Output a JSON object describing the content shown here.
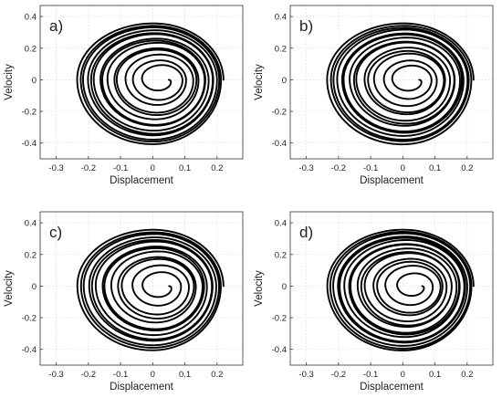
{
  "chart_data": [
    {
      "type": "line",
      "panel_label": "a)",
      "xlabel": "Displacement",
      "ylabel": "Velocity",
      "xlim": [
        -0.35,
        0.28
      ],
      "ylim": [
        -0.5,
        0.47
      ],
      "xticks": [
        -0.3,
        -0.2,
        -0.1,
        0,
        0.1,
        0.2
      ],
      "xtick_labels": [
        "-0.3",
        "-0.2",
        "-0.1",
        "0",
        "0.1",
        "0.2"
      ],
      "yticks": [
        -0.4,
        -0.2,
        0,
        0.2,
        0.4
      ],
      "ytick_labels": [
        "-0.4",
        "-0.2",
        "0",
        "0.2",
        "0.4"
      ],
      "grid": true,
      "series": [
        {
          "color": "#000000",
          "trajectory": {
            "start_x": 0.03,
            "start_y": 0.0,
            "final_x_neg": -0.24,
            "final_x_pos": 0.22,
            "final_y_pos": 0.42,
            "final_y_neg": -0.36,
            "loops": 14
          }
        }
      ]
    },
    {
      "type": "line",
      "panel_label": "b)",
      "xlabel": "Displacement",
      "ylabel": "Velocity",
      "xlim": [
        -0.35,
        0.28
      ],
      "ylim": [
        -0.5,
        0.47
      ],
      "xticks": [
        -0.3,
        -0.2,
        -0.1,
        0,
        0.1,
        0.2
      ],
      "xtick_labels": [
        "-0.3",
        "-0.2",
        "-0.1",
        "0",
        "0.1",
        "0.2"
      ],
      "yticks": [
        -0.4,
        -0.2,
        0,
        0.2,
        0.4
      ],
      "ytick_labels": [
        "-0.4",
        "-0.2",
        "0",
        "0.2",
        "0.4"
      ],
      "grid": true,
      "series": [
        {
          "color": "#000000",
          "trajectory": {
            "start_x": 0.03,
            "start_y": 0.0,
            "final_x_neg": -0.24,
            "final_x_pos": 0.22,
            "final_y_pos": 0.42,
            "final_y_neg": -0.36,
            "loops": 14
          }
        }
      ]
    },
    {
      "type": "line",
      "panel_label": "c)",
      "xlabel": "Displacement",
      "ylabel": "Velocity",
      "xlim": [
        -0.35,
        0.28
      ],
      "ylim": [
        -0.5,
        0.47
      ],
      "xticks": [
        -0.3,
        -0.2,
        -0.1,
        0,
        0.1,
        0.2
      ],
      "xtick_labels": [
        "-0.3",
        "-0.2",
        "-0.1",
        "0",
        "0.1",
        "0.2"
      ],
      "yticks": [
        -0.4,
        -0.2,
        0,
        0.2,
        0.4
      ],
      "ytick_labels": [
        "-0.4",
        "-0.2",
        "0",
        "0.2",
        "0.4"
      ],
      "grid": true,
      "series": [
        {
          "color": "#000000",
          "trajectory": {
            "start_x": 0.03,
            "start_y": 0.0,
            "final_x_neg": -0.24,
            "final_x_pos": 0.22,
            "final_y_pos": 0.42,
            "final_y_neg": -0.36,
            "loops": 13
          }
        }
      ]
    },
    {
      "type": "line",
      "panel_label": "d)",
      "xlabel": "Displacement",
      "ylabel": "Velocity",
      "xlim": [
        -0.35,
        0.28
      ],
      "ylim": [
        -0.5,
        0.47
      ],
      "xticks": [
        -0.3,
        -0.2,
        -0.1,
        0,
        0.1,
        0.2
      ],
      "xtick_labels": [
        "-0.3",
        "-0.2",
        "-0.1",
        "0",
        "0.1",
        "0.2"
      ],
      "yticks": [
        -0.4,
        -0.2,
        0,
        0.2,
        0.4
      ],
      "ytick_labels": [
        "-0.4",
        "-0.2",
        "0",
        "0.2",
        "0.4"
      ],
      "grid": true,
      "series": [
        {
          "color": "#000000",
          "trajectory": {
            "start_x": 0.04,
            "start_y": 0.0,
            "final_x_neg": -0.24,
            "final_x_pos": 0.22,
            "final_y_pos": 0.42,
            "final_y_neg": -0.36,
            "loops": 15
          }
        }
      ]
    }
  ]
}
